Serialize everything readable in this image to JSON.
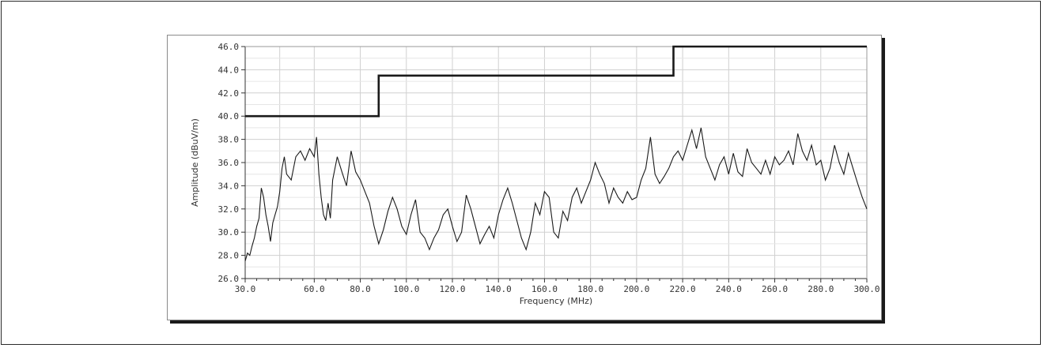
{
  "chart_data": {
    "type": "line",
    "title": "",
    "xlabel": "Frequency (MHz)",
    "ylabel": "Amplitude (dBuV/m)",
    "xlim": [
      30.0,
      300.0
    ],
    "ylim": [
      26.0,
      46.0
    ],
    "x_ticks": [
      30.0,
      60.0,
      80.0,
      100.0,
      120.0,
      140.0,
      160.0,
      180.0,
      200.0,
      220.0,
      240.0,
      260.0,
      280.0,
      300.0
    ],
    "x_tick_labels": [
      "30.0",
      "60.0",
      "80.0",
      "100.0",
      "120.0",
      "140.0",
      "160.0",
      "180.0",
      "200.0",
      "220.0",
      "240.0",
      "260.0",
      "280.0",
      "300.0"
    ],
    "y_ticks": [
      26.0,
      28.0,
      30.0,
      32.0,
      34.0,
      36.0,
      38.0,
      40.0,
      42.0,
      44.0,
      46.0
    ],
    "y_tick_labels": [
      "26.0",
      "28.0",
      "30.0",
      "32.0",
      "34.0",
      "36.0",
      "38.0",
      "40.0",
      "42.0",
      "44.0",
      "46.0"
    ],
    "grid": true,
    "colors": {
      "limit": "#1a1a1a",
      "measurement": "#1a1a1a",
      "grid": "#d0d0d0"
    },
    "series": [
      {
        "x": [
          30,
          88,
          88,
          216,
          216,
          300
        ],
        "values": [
          40.0,
          40.0,
          43.5,
          43.5,
          46.0,
          46.0
        ]
      },
      {
        "x": [
          30,
          31,
          32,
          33,
          34,
          35,
          36,
          37,
          38,
          39,
          40,
          41,
          42,
          43,
          44,
          45,
          46,
          47,
          48,
          50,
          52,
          54,
          56,
          58,
          60,
          61,
          62,
          63,
          64,
          65,
          66,
          67,
          68,
          70,
          72,
          74,
          76,
          78,
          80,
          82,
          84,
          86,
          88,
          90,
          92,
          94,
          96,
          98,
          100,
          102,
          104,
          106,
          108,
          110,
          112,
          114,
          116,
          118,
          120,
          122,
          124,
          126,
          128,
          130,
          132,
          134,
          136,
          138,
          140,
          142,
          144,
          146,
          148,
          150,
          152,
          154,
          156,
          158,
          160,
          162,
          164,
          166,
          168,
          170,
          172,
          174,
          176,
          178,
          180,
          182,
          184,
          186,
          188,
          190,
          192,
          194,
          196,
          198,
          200,
          202,
          204,
          206,
          208,
          210,
          212,
          214,
          216,
          218,
          220,
          222,
          224,
          226,
          228,
          230,
          232,
          234,
          236,
          238,
          240,
          242,
          244,
          246,
          248,
          250,
          252,
          254,
          256,
          258,
          260,
          262,
          264,
          266,
          268,
          270,
          272,
          274,
          276,
          278,
          280,
          282,
          284,
          286,
          288,
          290,
          292,
          294,
          296,
          298,
          300
        ],
        "values": [
          27.5,
          28.2,
          28.0,
          28.8,
          29.5,
          30.5,
          31.2,
          33.8,
          33.0,
          31.5,
          30.5,
          29.2,
          30.8,
          31.5,
          32.2,
          33.5,
          35.5,
          36.5,
          35.0,
          34.5,
          36.5,
          37.0,
          36.2,
          37.2,
          36.5,
          38.2,
          35.0,
          33.0,
          31.5,
          31.0,
          32.5,
          31.2,
          34.5,
          36.5,
          35.2,
          34.0,
          37.0,
          35.2,
          34.5,
          33.5,
          32.5,
          30.5,
          29.0,
          30.2,
          31.8,
          33.0,
          32.0,
          30.5,
          29.8,
          31.5,
          32.8,
          30.0,
          29.5,
          28.5,
          29.5,
          30.2,
          31.5,
          32.0,
          30.5,
          29.2,
          30.0,
          33.2,
          32.0,
          30.5,
          29.0,
          29.8,
          30.5,
          29.5,
          31.5,
          32.8,
          33.8,
          32.5,
          31.0,
          29.5,
          28.5,
          30.0,
          32.5,
          31.5,
          33.5,
          33.0,
          30.0,
          29.5,
          31.8,
          31.0,
          33.0,
          33.8,
          32.5,
          33.5,
          34.5,
          36.0,
          35.0,
          34.2,
          32.5,
          33.8,
          33.0,
          32.5,
          33.5,
          32.8,
          33.0,
          34.5,
          35.5,
          38.2,
          35.0,
          34.2,
          34.8,
          35.5,
          36.5,
          37.0,
          36.2,
          37.5,
          38.8,
          37.2,
          39.0,
          36.5,
          35.5,
          34.5,
          35.8,
          36.5,
          35.0,
          36.8,
          35.2,
          34.8,
          37.2,
          36.0,
          35.5,
          35.0,
          36.2,
          35.0,
          36.5,
          35.8,
          36.2,
          37.0,
          35.8,
          38.5,
          37.0,
          36.2,
          37.5,
          35.8,
          36.2,
          34.5,
          35.5,
          37.5,
          36.0,
          35.0,
          36.8,
          35.5,
          34.2,
          33.0,
          32.0
        ]
      }
    ]
  }
}
